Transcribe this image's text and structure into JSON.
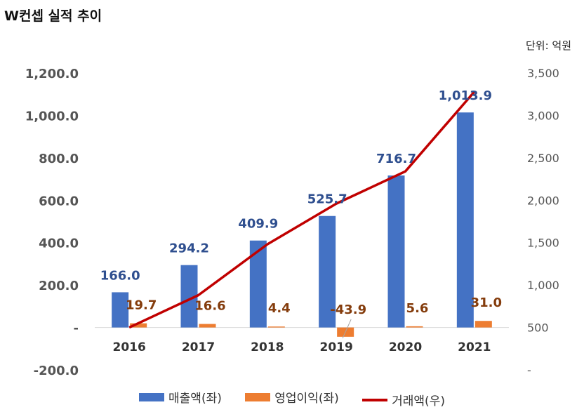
{
  "title": "W컨셉 실적 추이",
  "unit": "단위: 억원",
  "colors": {
    "revenue": "#4472C4",
    "op_income": "#ED7D31",
    "transaction": "#C00000",
    "revenue_label": "#2F4F8F",
    "op_label": "#843C0C",
    "axis_text": "#555555"
  },
  "legend": [
    {
      "name": "매출액(좌)",
      "kind": "bar",
      "color": "#4472C4"
    },
    {
      "name": "영업이익(좌)",
      "kind": "bar",
      "color": "#ED7D31"
    },
    {
      "name": "거래액(우)",
      "kind": "line",
      "color": "#C00000"
    }
  ],
  "chart_data": {
    "type": "bar",
    "categories": [
      "2016",
      "2017",
      "2018",
      "2019",
      "2020",
      "2021"
    ],
    "series": [
      {
        "name": "매출액(좌)",
        "type": "bar",
        "axis": "left",
        "values": [
          166.0,
          294.2,
          409.9,
          525.7,
          716.7,
          1013.9
        ],
        "labels": [
          "166.0",
          "294.2",
          "409.9",
          "525.7",
          "716.7",
          "1,013.9"
        ]
      },
      {
        "name": "영업이익(좌)",
        "type": "bar",
        "axis": "left",
        "values": [
          19.7,
          16.6,
          4.4,
          -43.9,
          5.6,
          31.0
        ],
        "labels": [
          "19.7",
          "16.6",
          "4.4",
          "-43.9",
          "5.6",
          "31.0"
        ]
      },
      {
        "name": "거래액(우)",
        "type": "line",
        "axis": "right",
        "values": [
          500,
          880,
          1480,
          1960,
          2340,
          3280
        ]
      }
    ],
    "y_left": {
      "min": -200,
      "max": 1200,
      "step": 200,
      "tick_labels": [
        "-200.0",
        "-",
        "200.0",
        "400.0",
        "600.0",
        "800.0",
        "1,000.0",
        "1,200.0"
      ]
    },
    "y_right": {
      "min": 0,
      "max": 3500,
      "step": 500,
      "tick_labels": [
        "-",
        "500",
        "1,000",
        "1,500",
        "2,000",
        "2,500",
        "3,000",
        "3,500"
      ]
    },
    "legend_position": "bottom",
    "grid": false
  }
}
